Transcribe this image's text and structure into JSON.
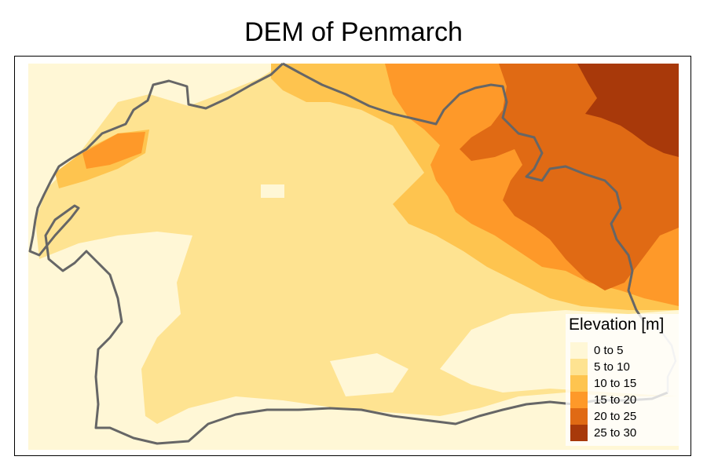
{
  "map": {
    "title": "DEM of Penmarch",
    "legend": {
      "title": "Elevation [m]",
      "classes": [
        {
          "label": "0 to 5",
          "color": "#fff7d6"
        },
        {
          "label": "5 to 10",
          "color": "#fee391"
        },
        {
          "label": "10 to 15",
          "color": "#fec44f"
        },
        {
          "label": "15 to 20",
          "color": "#fe9929"
        },
        {
          "label": "20 to 25",
          "color": "#e06a14"
        },
        {
          "label": "25 to 30",
          "color": "#a8390a"
        }
      ]
    },
    "boundary_color": "#666666"
  }
}
